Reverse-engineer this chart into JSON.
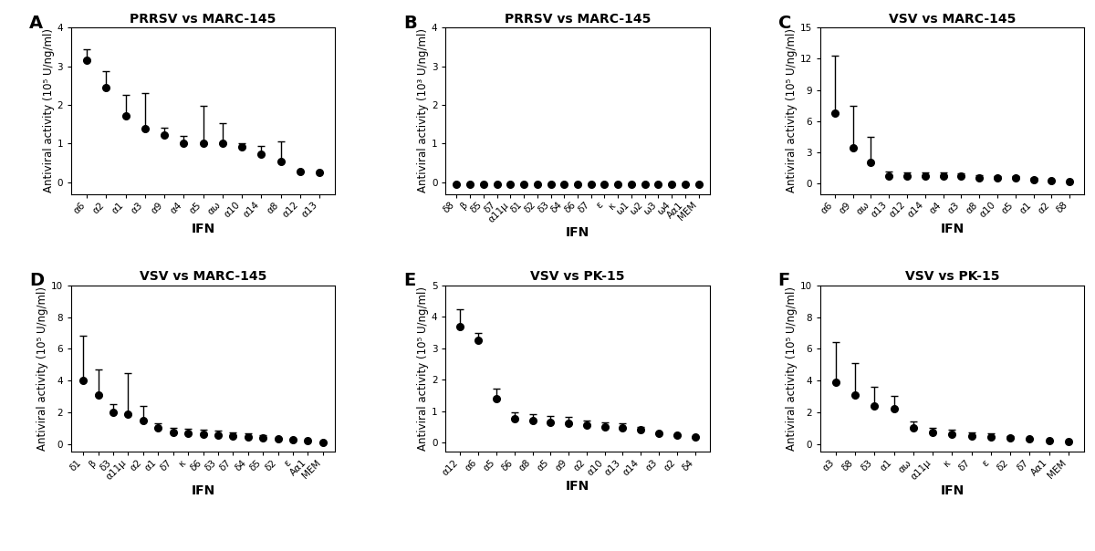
{
  "panels": [
    {
      "label": "A",
      "title": "PRRSV vs MARC-145",
      "ylabel": "Antiviral activity (10⁵ U/ng/ml)",
      "xlabel": "IFN",
      "ylim": [
        -0.3,
        4.0
      ],
      "yticks": [
        0,
        1,
        2,
        3,
        4
      ],
      "categories": [
        "α6",
        "α2",
        "α1",
        "α3",
        "α9",
        "α4",
        "α5",
        "αω",
        "α10",
        "α14",
        "α8",
        "α12",
        "α13"
      ],
      "values": [
        3.15,
        2.45,
        1.72,
        1.38,
        1.22,
        1.02,
        1.02,
        1.02,
        0.92,
        0.72,
        0.55,
        0.28,
        0.25
      ],
      "yerr_lo": [
        0.0,
        0.0,
        0.0,
        0.0,
        0.0,
        0.0,
        0.0,
        0.0,
        0.0,
        0.0,
        0.0,
        0.0,
        0.0
      ],
      "yerr_hi": [
        0.28,
        0.42,
        0.55,
        0.92,
        0.18,
        0.18,
        0.95,
        0.52,
        0.1,
        0.22,
        0.5,
        0.0,
        0.0
      ]
    },
    {
      "label": "B",
      "title": "PRRSV vs MARC-145",
      "ylabel": "Antiviral activity (10³ U/ng/ml)",
      "xlabel": "IFN",
      "ylim": [
        -0.3,
        4.0
      ],
      "yticks": [
        0,
        1,
        2,
        3,
        4
      ],
      "categories": [
        "δ8",
        "β",
        "δ5",
        "δ7",
        "α11μ",
        "δ1",
        "δ2",
        "δ3",
        "δ4",
        "δ6",
        "δ7",
        "ε",
        "κ",
        "ω1",
        "ω2",
        "ω3",
        "ω4",
        "Aα1",
        "MEM"
      ],
      "values": [
        -0.05,
        -0.05,
        -0.05,
        -0.05,
        -0.05,
        -0.05,
        -0.05,
        -0.05,
        -0.05,
        -0.05,
        -0.05,
        -0.05,
        -0.05,
        -0.05,
        -0.05,
        -0.05,
        -0.05,
        -0.05,
        -0.05
      ],
      "yerr_lo": [
        0.0,
        0.0,
        0.0,
        0.0,
        0.0,
        0.0,
        0.0,
        0.0,
        0.0,
        0.0,
        0.0,
        0.0,
        0.0,
        0.0,
        0.0,
        0.0,
        0.0,
        0.0,
        0.0
      ],
      "yerr_hi": [
        0.0,
        0.0,
        0.0,
        0.0,
        0.0,
        0.0,
        0.0,
        0.0,
        0.0,
        0.0,
        0.0,
        0.0,
        0.0,
        0.0,
        0.0,
        0.0,
        0.0,
        0.0,
        0.0
      ]
    },
    {
      "label": "C",
      "title": "VSV vs MARC-145",
      "ylabel": "Antiviral activity (10⁵ U/ng/ml)",
      "xlabel": "IFN",
      "ylim": [
        -1.0,
        15.0
      ],
      "yticks": [
        0,
        3,
        6,
        9,
        12,
        15
      ],
      "categories": [
        "α6",
        "α9",
        "αω",
        "α13",
        "α12",
        "α14",
        "α4",
        "α3",
        "α8",
        "α10",
        "α5",
        "α1",
        "α2",
        "δ8"
      ],
      "values": [
        6.8,
        3.4,
        2.0,
        0.7,
        0.7,
        0.7,
        0.7,
        0.7,
        0.5,
        0.5,
        0.5,
        0.4,
        0.3,
        0.2
      ],
      "yerr_lo": [
        0.0,
        0.0,
        0.0,
        0.0,
        0.0,
        0.0,
        0.0,
        0.0,
        0.0,
        0.0,
        0.0,
        0.0,
        0.0,
        0.0
      ],
      "yerr_hi": [
        5.5,
        4.1,
        2.5,
        0.5,
        0.4,
        0.4,
        0.4,
        0.3,
        0.3,
        0.2,
        0.2,
        0.1,
        0.0,
        0.0
      ]
    },
    {
      "label": "D",
      "title": "VSV vs MARC-145",
      "ylabel": "Antiviral activity (10⁵ U/ng/ml)",
      "xlabel": "IFN",
      "ylim": [
        -0.5,
        10.0
      ],
      "yticks": [
        0,
        2,
        4,
        6,
        8,
        10
      ],
      "categories": [
        "δ1",
        "β",
        "δ3",
        "α11μ",
        "α2",
        "α1",
        "δ7",
        "κ",
        "δ6",
        "δ3",
        "δ7",
        "δ4",
        "δ5",
        "δ2",
        "ε",
        "Aα1",
        "MEM"
      ],
      "values": [
        4.0,
        3.1,
        2.0,
        1.85,
        1.5,
        1.0,
        0.7,
        0.65,
        0.6,
        0.55,
        0.5,
        0.45,
        0.38,
        0.3,
        0.25,
        0.18,
        0.12
      ],
      "yerr_lo": [
        0.0,
        0.0,
        0.0,
        0.0,
        0.0,
        0.0,
        0.0,
        0.0,
        0.0,
        0.0,
        0.0,
        0.0,
        0.0,
        0.0,
        0.0,
        0.0,
        0.0
      ],
      "yerr_hi": [
        2.8,
        1.6,
        0.5,
        2.6,
        0.9,
        0.3,
        0.3,
        0.3,
        0.3,
        0.3,
        0.2,
        0.2,
        0.2,
        0.1,
        0.1,
        0.0,
        0.0
      ]
    },
    {
      "label": "E",
      "title": "VSV vs PK-15",
      "ylabel": "Antiviral activity (10⁵ U/ng/ml)",
      "xlabel": "IFN",
      "ylim": [
        -0.3,
        5.0
      ],
      "yticks": [
        0,
        1,
        2,
        3,
        4,
        5
      ],
      "categories": [
        "α12",
        "α6",
        "α5",
        "δ6",
        "α8",
        "α5",
        "α9",
        "α2",
        "α10",
        "α13",
        "α14",
        "α3",
        "α2",
        "δ4"
      ],
      "values": [
        3.7,
        3.25,
        1.4,
        0.75,
        0.7,
        0.65,
        0.6,
        0.55,
        0.5,
        0.45,
        0.4,
        0.3,
        0.22,
        0.18
      ],
      "yerr_lo": [
        0.0,
        0.0,
        0.0,
        0.0,
        0.0,
        0.0,
        0.0,
        0.0,
        0.0,
        0.0,
        0.0,
        0.0,
        0.0,
        0.0
      ],
      "yerr_hi": [
        0.55,
        0.25,
        0.3,
        0.2,
        0.2,
        0.2,
        0.2,
        0.15,
        0.15,
        0.15,
        0.1,
        0.0,
        0.0,
        0.0
      ]
    },
    {
      "label": "F",
      "title": "VSV vs PK-15",
      "ylabel": "Antiviral activity (10⁵ U/ng/ml)",
      "xlabel": "IFN",
      "ylim": [
        -0.5,
        10.0
      ],
      "yticks": [
        0,
        2,
        4,
        6,
        8,
        10
      ],
      "categories": [
        "α3",
        "δ8",
        "δ3",
        "α1",
        "αω",
        "α11μ",
        "κ",
        "δ7",
        "ε",
        "δ2",
        "δ7",
        "Aα1",
        "MEM"
      ],
      "values": [
        3.9,
        3.1,
        2.4,
        2.2,
        1.0,
        0.7,
        0.6,
        0.5,
        0.45,
        0.4,
        0.3,
        0.2,
        0.15
      ],
      "yerr_lo": [
        0.0,
        0.0,
        0.0,
        0.0,
        0.0,
        0.0,
        0.0,
        0.0,
        0.0,
        0.0,
        0.0,
        0.0,
        0.0
      ],
      "yerr_hi": [
        2.5,
        2.0,
        1.2,
        0.8,
        0.4,
        0.3,
        0.3,
        0.2,
        0.2,
        0.1,
        0.0,
        0.0,
        0.0
      ]
    }
  ],
  "dot_color": "#000000",
  "capsize": 3,
  "elinewidth": 1.0,
  "label_fontsize": 14,
  "title_fontsize": 10,
  "tick_fontsize": 7.5,
  "axis_label_fontsize": 8.5,
  "xlabel_fontsize": 10
}
